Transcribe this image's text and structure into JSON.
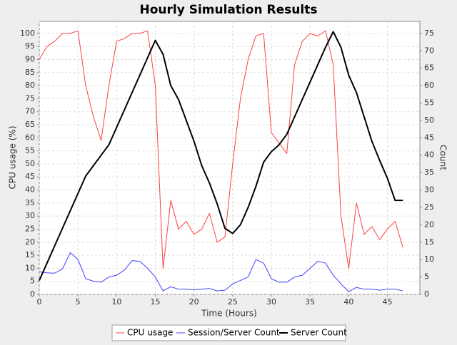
{
  "chart_data": {
    "type": "line",
    "title": "Hourly Simulation Results",
    "x_label": "Time (Hours)",
    "y_label": "CPU usage (%)",
    "y2_label": "Count",
    "x": [
      0,
      1,
      2,
      3,
      4,
      5,
      6,
      7,
      8,
      9,
      10,
      11,
      12,
      13,
      14,
      15,
      16,
      17,
      18,
      19,
      20,
      21,
      22,
      23,
      24,
      25,
      26,
      27,
      28,
      29,
      30,
      31,
      32,
      33,
      34,
      35,
      36,
      37,
      38,
      39,
      40,
      41,
      42,
      43,
      44,
      45,
      46,
      47
    ],
    "xlim": [
      0,
      49.2
    ],
    "xticks": [
      0,
      5,
      10,
      15,
      20,
      25,
      30,
      35,
      40,
      45
    ],
    "ylim": [
      0,
      104.6
    ],
    "yticks": [
      0,
      5,
      10,
      15,
      20,
      25,
      30,
      35,
      40,
      45,
      50,
      55,
      60,
      65,
      70,
      75,
      80,
      85,
      90,
      95,
      100
    ],
    "y2lim": [
      0,
      78.45
    ],
    "y2ticks": [
      0,
      5,
      10,
      15,
      20,
      25,
      30,
      35,
      40,
      45,
      50,
      55,
      60,
      65,
      70,
      75
    ],
    "grid": true,
    "legend": "bottom",
    "series": [
      {
        "name": "CPU usage",
        "color": "#ff4040",
        "width": 1,
        "values": [
          90,
          95,
          97,
          100,
          100,
          101,
          80,
          68,
          59,
          80,
          97,
          98,
          100,
          100,
          101,
          80,
          10,
          36,
          25,
          28,
          23,
          25,
          31,
          20,
          22,
          50,
          75,
          90,
          99,
          100,
          62,
          58,
          54,
          88,
          97,
          100,
          99,
          101,
          88,
          30,
          10,
          35,
          23,
          26,
          21,
          25,
          28,
          18
        ]
      },
      {
        "name": "Session/Server Count",
        "color": "#4040ff",
        "width": 1,
        "axis": "y2",
        "values": [
          6.5,
          6.2,
          6.1,
          7.3,
          12,
          10,
          4.5,
          3.8,
          3.5,
          5,
          5.5,
          7,
          9.7,
          9.5,
          7.5,
          5,
          1,
          2.2,
          1.5,
          1.5,
          1.3,
          1.5,
          1.7,
          1,
          1.2,
          3,
          4,
          5,
          10,
          9,
          4.5,
          3.5,
          3.5,
          5,
          5.5,
          7.5,
          9.5,
          9,
          5.5,
          3,
          0.8,
          2,
          1.5,
          1.5,
          1.2,
          1.5,
          1.5,
          1
        ]
      },
      {
        "name": "Server Count",
        "color": "#000000",
        "width": 2,
        "axis": "y2",
        "values": [
          4,
          9,
          14,
          19,
          24,
          29,
          34,
          37,
          40,
          43,
          48,
          53,
          58,
          63,
          68,
          73,
          69,
          60,
          56,
          50,
          44,
          37,
          32,
          26,
          19,
          17.5,
          20,
          25,
          31,
          38,
          41,
          43,
          46,
          51,
          56,
          61,
          66,
          71,
          75.5,
          71,
          63,
          58,
          51,
          44,
          38.5,
          33.4,
          27,
          27
        ]
      }
    ]
  }
}
